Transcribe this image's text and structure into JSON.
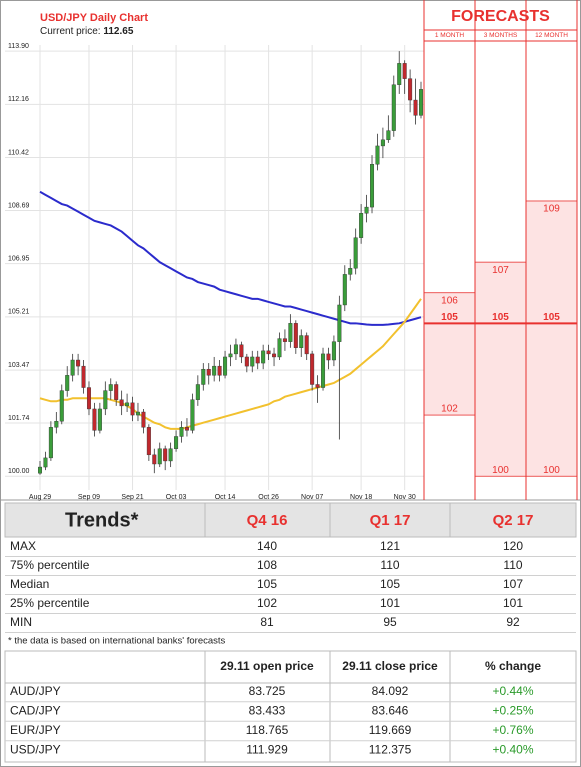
{
  "chart_data": {
    "type": "candlestick",
    "title": "USD/JPY Daily Chart",
    "current_price_label": "Current price:",
    "current_price": 112.65,
    "categories": [
      "Aug 29",
      null,
      null,
      null,
      null,
      null,
      null,
      null,
      null,
      "Sep 09",
      null,
      null,
      null,
      null,
      null,
      null,
      null,
      "Sep 21",
      null,
      null,
      null,
      null,
      null,
      null,
      null,
      "Oct 03",
      null,
      null,
      null,
      null,
      null,
      null,
      null,
      null,
      "Oct 14",
      null,
      null,
      null,
      null,
      null,
      null,
      null,
      "Oct 26",
      null,
      null,
      null,
      null,
      null,
      null,
      null,
      "Nov 07",
      null,
      null,
      null,
      null,
      null,
      null,
      null,
      null,
      "Nov 18",
      null,
      null,
      null,
      null,
      null,
      null,
      null,
      "Nov 30",
      null,
      null,
      null
    ],
    "open": [
      100.1,
      100.3,
      100.6,
      101.6,
      101.8,
      102.8,
      103.3,
      103.8,
      103.6,
      102.9,
      102.2,
      101.5,
      102.2,
      102.8,
      103.0,
      102.5,
      102.3,
      102.4,
      102.0,
      102.1,
      101.6,
      100.7,
      100.4,
      100.9,
      100.5,
      100.9,
      101.3,
      101.6,
      101.5,
      102.5,
      103.0,
      103.5,
      103.3,
      103.6,
      103.3,
      103.9,
      104.0,
      104.3,
      103.9,
      103.6,
      103.9,
      103.7,
      104.1,
      104.0,
      103.9,
      104.5,
      104.4,
      105.0,
      104.2,
      104.6,
      104.0,
      103.0,
      102.9,
      104.0,
      103.8,
      104.4,
      105.6,
      106.6,
      106.8,
      107.8,
      108.6,
      108.8,
      110.2,
      110.8,
      111.0,
      111.3,
      112.8,
      113.5,
      113.0,
      112.3,
      111.8
    ],
    "high": [
      100.5,
      100.8,
      101.8,
      102.1,
      103.0,
      103.6,
      104.0,
      104.0,
      103.8,
      103.1,
      102.4,
      102.4,
      103.1,
      103.2,
      103.1,
      102.8,
      102.7,
      102.6,
      102.4,
      102.2,
      101.7,
      100.9,
      101.1,
      101.0,
      101.1,
      101.5,
      101.8,
      101.9,
      102.7,
      103.3,
      103.7,
      103.7,
      103.9,
      103.8,
      104.1,
      104.3,
      104.5,
      104.4,
      104.0,
      104.1,
      104.1,
      104.3,
      104.3,
      104.2,
      104.7,
      104.8,
      105.3,
      105.1,
      104.8,
      104.7,
      104.1,
      103.3,
      104.2,
      104.2,
      104.6,
      105.9,
      106.9,
      107.1,
      108.1,
      108.9,
      109.2,
      110.5,
      111.2,
      111.4,
      111.8,
      113.1,
      113.9,
      113.6,
      113.3,
      113.0,
      112.9
    ],
    "low": [
      100.05,
      100.2,
      100.5,
      101.4,
      101.7,
      102.6,
      103.1,
      103.3,
      102.7,
      102.0,
      101.3,
      101.4,
      102.0,
      102.5,
      102.3,
      102.0,
      102.1,
      101.8,
      101.8,
      101.4,
      100.5,
      100.1,
      100.3,
      100.2,
      100.3,
      100.8,
      101.1,
      101.3,
      101.4,
      102.3,
      102.8,
      103.0,
      103.1,
      103.1,
      103.2,
      103.6,
      103.8,
      103.7,
      103.4,
      103.4,
      103.5,
      103.5,
      103.8,
      103.6,
      103.8,
      104.1,
      104.2,
      104.0,
      103.9,
      103.8,
      102.8,
      102.4,
      102.8,
      103.5,
      103.6,
      101.2,
      105.4,
      106.4,
      106.6,
      107.6,
      108.3,
      108.6,
      110.0,
      110.4,
      110.9,
      111.1,
      112.5,
      112.5,
      111.9,
      111.5,
      111.7
    ],
    "close": [
      100.3,
      100.6,
      101.6,
      101.8,
      102.8,
      103.3,
      103.8,
      103.6,
      102.9,
      102.2,
      101.5,
      102.2,
      102.8,
      103.0,
      102.5,
      102.3,
      102.4,
      102.0,
      102.1,
      101.6,
      100.7,
      100.4,
      100.9,
      100.5,
      100.9,
      101.3,
      101.6,
      101.5,
      102.5,
      103.0,
      103.5,
      103.3,
      103.6,
      103.3,
      103.9,
      104.0,
      104.3,
      103.9,
      103.6,
      103.9,
      103.7,
      104.1,
      104.0,
      103.9,
      104.5,
      104.4,
      105.0,
      104.2,
      104.6,
      104.0,
      103.0,
      102.9,
      104.0,
      103.8,
      104.4,
      105.6,
      106.6,
      106.8,
      107.8,
      108.6,
      108.8,
      110.2,
      110.8,
      111.0,
      111.3,
      112.8,
      113.5,
      113.0,
      112.3,
      111.8,
      112.65
    ],
    "up_color": "#3a9d3a",
    "down_color": "#c0282d",
    "lines": [
      {
        "color": "#2b2bcc",
        "values": [
          109.3,
          109.2,
          109.1,
          109.0,
          108.9,
          108.85,
          108.75,
          108.65,
          108.55,
          108.45,
          108.35,
          108.3,
          108.25,
          108.2,
          108.1,
          108.0,
          107.85,
          107.7,
          107.55,
          107.45,
          107.3,
          107.15,
          107.0,
          106.9,
          106.8,
          106.7,
          106.6,
          106.5,
          106.45,
          106.35,
          106.3,
          106.25,
          106.2,
          106.1,
          106.05,
          106.0,
          105.95,
          105.9,
          105.85,
          105.8,
          105.8,
          105.75,
          105.7,
          105.65,
          105.6,
          105.55,
          105.55,
          105.5,
          105.45,
          105.4,
          105.35,
          105.3,
          105.25,
          105.2,
          105.15,
          105.1,
          105.05,
          105.0,
          105.0,
          104.98,
          104.96,
          104.95,
          104.95,
          104.95,
          104.96,
          104.98,
          105.0,
          105.05,
          105.1,
          105.15,
          105.2
        ]
      },
      {
        "color": "#f2c12e",
        "values": [
          102.55,
          102.5,
          102.45,
          102.45,
          102.5,
          102.5,
          102.55,
          102.55,
          102.55,
          102.55,
          102.55,
          102.55,
          102.55,
          102.5,
          102.45,
          102.4,
          102.3,
          102.2,
          102.05,
          101.95,
          101.85,
          101.75,
          101.7,
          101.6,
          101.55,
          101.55,
          101.55,
          101.6,
          101.65,
          101.7,
          101.75,
          101.8,
          101.85,
          101.9,
          101.95,
          102.0,
          102.05,
          102.1,
          102.15,
          102.2,
          102.25,
          102.3,
          102.35,
          102.45,
          102.5,
          102.6,
          102.65,
          102.7,
          102.75,
          102.8,
          102.85,
          102.9,
          102.95,
          103.0,
          103.05,
          103.15,
          103.25,
          103.35,
          103.5,
          103.65,
          103.8,
          103.95,
          104.1,
          104.25,
          104.45,
          104.65,
          104.85,
          105.05,
          105.3,
          105.55,
          105.8
        ]
      }
    ],
    "ylim": [
      99.55,
      114.1
    ],
    "yticks": [
      {
        "value": 100,
        "label": "100.00"
      },
      101.74,
      103.47,
      105.21,
      106.95,
      108.69,
      110.42,
      112.16,
      {
        "value": 113.9,
        "label": "113.90"
      }
    ],
    "grid": true,
    "forecasts": {
      "title": "FORECASTS",
      "color": "#e8312f",
      "fill": "#fde3e3",
      "columns": [
        {
          "label": "1 MONTH",
          "high": 106,
          "median": 105,
          "low": 102
        },
        {
          "label": "3 MONTHS",
          "high": 107,
          "median": 105,
          "low": 100
        },
        {
          "label": "12 MONTH",
          "high": 109,
          "median": 105,
          "low": 100
        }
      ]
    }
  },
  "trends": {
    "title": "Trends*",
    "columns": [
      "Q4 16",
      "Q1 17",
      "Q2 17"
    ],
    "rows": [
      {
        "label": "MAX",
        "values": [
          "140",
          "121",
          "120"
        ]
      },
      {
        "label": "75% percentile",
        "values": [
          "108",
          "110",
          "110"
        ]
      },
      {
        "label": "Median",
        "values": [
          "105",
          "105",
          "107"
        ]
      },
      {
        "label": "25% percentile",
        "values": [
          "102",
          "101",
          "101"
        ]
      },
      {
        "label": "MIN",
        "values": [
          "81",
          "95",
          "92"
        ]
      }
    ]
  },
  "note": "* the data is based on international banks' forecasts",
  "prices": {
    "columns": [
      "29.11 open price",
      "29.11 close price",
      "% change"
    ],
    "rows": [
      [
        "AUD/JPY",
        "83.725",
        "84.092",
        "+0.44%"
      ],
      [
        "CAD/JPY",
        "83.433",
        "83.646",
        "+0.25%"
      ],
      [
        "EUR/JPY",
        "118.765",
        "119.669",
        "+0.76%"
      ],
      [
        "USD/JPY",
        "111.929",
        "112.375",
        "+0.40%"
      ]
    ]
  }
}
